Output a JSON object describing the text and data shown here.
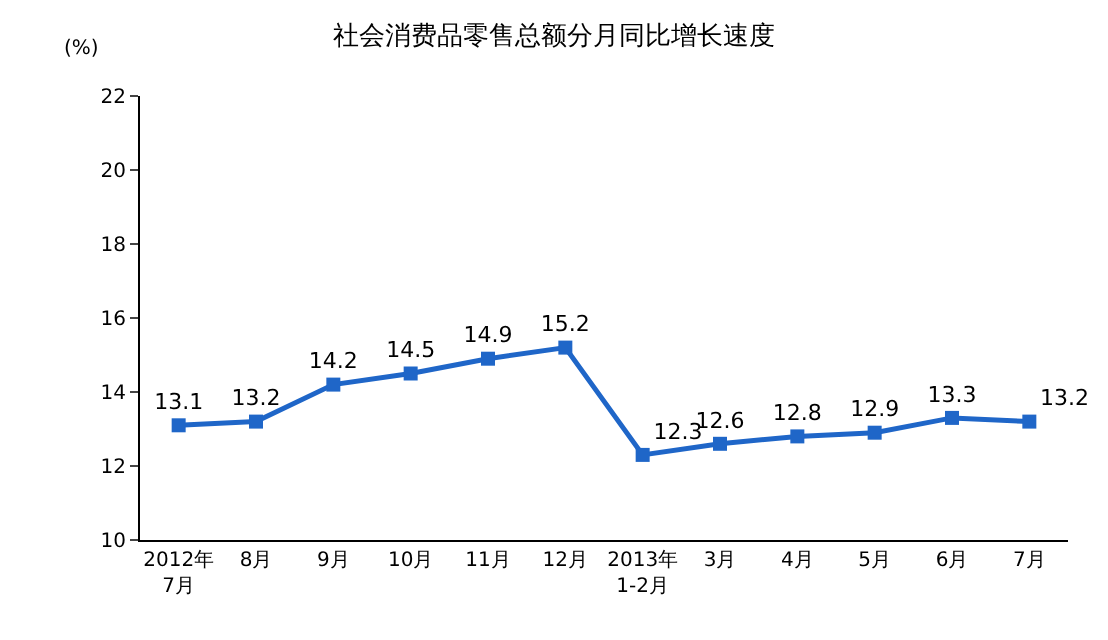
{
  "chart_data": {
    "type": "line",
    "title": "社会消费品零售总额分月同比增长速度",
    "ylabel": "(%)",
    "categories": [
      "2012年\n7月",
      "8月",
      "9月",
      "10月",
      "11月",
      "12月",
      "2013年\n1-2月",
      "3月",
      "4月",
      "5月",
      "6月",
      "7月"
    ],
    "series": [
      {
        "color": "#1f66c8",
        "values": [
          13.1,
          13.2,
          14.2,
          14.5,
          14.9,
          15.2,
          12.3,
          12.6,
          12.8,
          12.9,
          13.3,
          13.2
        ]
      }
    ],
    "ylim": [
      10,
      22
    ],
    "yticks": [
      10,
      12,
      14,
      16,
      18,
      20,
      22
    ],
    "grid": false,
    "legend": false,
    "marker": "square",
    "line_style": "solid",
    "data_labels": true
  }
}
